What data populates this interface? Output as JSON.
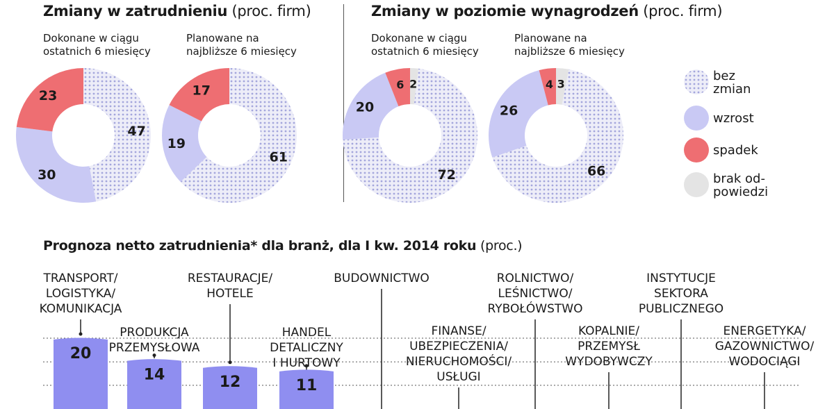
{
  "colors": {
    "bez_zmian": "#cfd0ef",
    "bez_zmian_dot": "#9a9cd8",
    "wzrost": "#c9c9f4",
    "spadek": "#ee6e72",
    "brak": "#e4e4e4",
    "bar": "#8f8ef0"
  },
  "section1": {
    "title_bold": "Zmiany w zatrudnieniu",
    "title_unit": "(proc. firm)",
    "sub_left": [
      "Dokonane w ciągu",
      "ostatnich 6 miesięcy"
    ],
    "sub_right": [
      "Planowane na",
      "najbliższe 6 miesięcy"
    ]
  },
  "section2": {
    "title_bold": "Zmiany w poziomie wynagrodzeń",
    "title_unit": "(proc. firm)",
    "sub_left": [
      "Dokonane w ciągu",
      "ostatnich 6 miesięcy"
    ],
    "sub_right": [
      "Planowane na",
      "najbliższe 6 miesięcy"
    ]
  },
  "legend": {
    "bez_zmian": [
      "bez",
      "zmian"
    ],
    "wzrost": [
      "wzrost"
    ],
    "spadek": [
      "spadek"
    ],
    "brak": [
      "brak od-",
      "powiedzi"
    ]
  },
  "section3": {
    "title_bold": "Prognoza netto zatrudnienia* dla branż, dla I kw. 2014 roku",
    "title_unit": "(proc.)"
  },
  "chart_data": [
    {
      "type": "pie",
      "title": "Zmiany w zatrudnieniu — Dokonane w ciągu ostatnich 6 miesięcy",
      "categories": [
        "bez zmian",
        "wzrost",
        "spadek"
      ],
      "values": [
        47,
        30,
        23
      ]
    },
    {
      "type": "pie",
      "title": "Zmiany w zatrudnieniu — Planowane na najbliższe 6 miesięcy",
      "categories": [
        "bez zmian",
        "wzrost",
        "spadek"
      ],
      "values": [
        61,
        19,
        17
      ]
    },
    {
      "type": "pie",
      "title": "Zmiany w poziomie wynagrodzeń — Dokonane w ciągu ostatnich 6 miesięcy",
      "categories": [
        "bez zmian",
        "wzrost",
        "spadek",
        "brak odpowiedzi"
      ],
      "values": [
        72,
        20,
        6,
        2
      ]
    },
    {
      "type": "pie",
      "title": "Zmiany w poziomie wynagrodzeń — Planowane na najbliższe 6 miesięcy",
      "categories": [
        "bez zmian",
        "wzrost",
        "spadek",
        "brak odpowiedzi"
      ],
      "values": [
        66,
        26,
        4,
        3
      ]
    },
    {
      "type": "bar",
      "title": "Prognoza netto zatrudnienia* dla branż, dla I kw. 2014 roku (proc.)",
      "categories": [
        [
          "TRANSPORT/",
          "LOGISTYKA/",
          "KOMUNIKACJA"
        ],
        [
          "PRODUKCJA",
          "PRZEMYSŁOWA"
        ],
        [
          "RESTAURACJE/",
          "HOTELE"
        ],
        [
          "HANDEL",
          "DETALICZNY",
          "I HURTOWY"
        ],
        [
          "BUDOWNICTWO"
        ],
        [
          "FINANSE/",
          "UBEZPIECZENIA/",
          "NIERUCHOMOŚCI/",
          "USŁUGI"
        ],
        [
          "ROLNICTWO/",
          "LEŚNICTWO/",
          "RYBOŁÓWSTWO"
        ],
        [
          "KOPALNIE/",
          "PRZEMYSŁ",
          "WYDOBYWCZY"
        ],
        [
          "INSTYTUCJE",
          "SEKTORA",
          "PUBLICZNEGO"
        ],
        [
          "ENERGETYKA/",
          "GAZOWNICTWO/",
          "WODOCIĄGI"
        ]
      ],
      "values": [
        20,
        14,
        12,
        11,
        null,
        null,
        null,
        null,
        null,
        null
      ],
      "value_labels": [
        "20",
        "14",
        "12",
        "11",
        "",
        "",
        "",
        "",
        "",
        ""
      ]
    }
  ]
}
